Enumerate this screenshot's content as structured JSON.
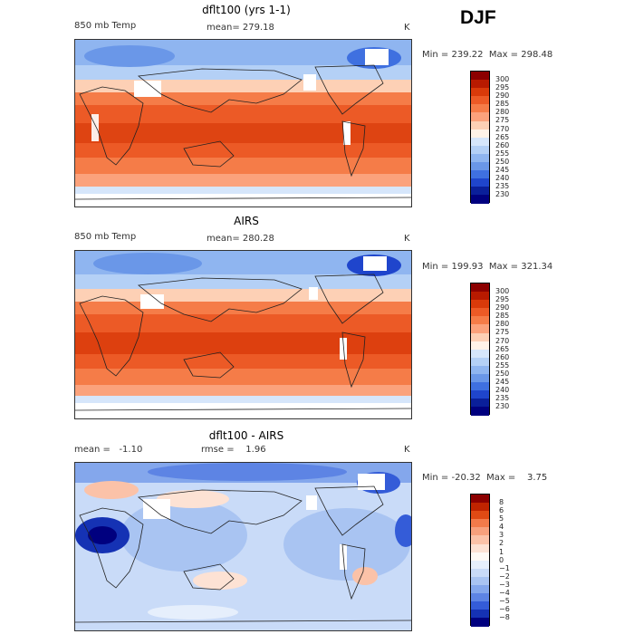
{
  "season": "DJF",
  "panels": [
    {
      "title": "dflt100 (yrs 1-1)",
      "left_label": "850 mb Temp",
      "center_label": "mean= 279.18",
      "unit": "K",
      "range_text": "Min = 239.22  Max = 298.48",
      "ticks": [
        "300",
        "295",
        "290",
        "285",
        "280",
        "275",
        "270",
        "265",
        "260",
        "255",
        "250",
        "245",
        "240",
        "235",
        "230"
      ]
    },
    {
      "title": "AIRS",
      "left_label": "850 mb Temp",
      "center_label": "mean= 280.28",
      "unit": "K",
      "range_text": "Min = 199.93  Max = 321.34",
      "ticks": [
        "300",
        "295",
        "290",
        "285",
        "280",
        "275",
        "270",
        "265",
        "260",
        "255",
        "250",
        "245",
        "240",
        "235",
        "230"
      ]
    },
    {
      "title": "dflt100 - AIRS",
      "left_label": "mean =   -1.10",
      "center_label": "rmse =    1.96",
      "unit": "K",
      "range_text": "Min = -20.32  Max =    3.75",
      "ticks": [
        "8",
        "6",
        "5",
        "4",
        "3",
        "2",
        "1",
        "0",
        "−1",
        "−2",
        "−3",
        "−4",
        "−5",
        "−6",
        "−8"
      ]
    }
  ],
  "colors": {
    "temp_scale": [
      "#8c0000",
      "#b81a00",
      "#d93a0a",
      "#ec5a26",
      "#f57c48",
      "#fba27c",
      "#fdd0b5",
      "#fff3e8",
      "#d6e6fb",
      "#b4d0f6",
      "#8fb5f0",
      "#6a97e8",
      "#3f70e0",
      "#1f45cc",
      "#0a1f9a",
      "#00007f"
    ],
    "diff_scale": [
      "#8c0000",
      "#c02400",
      "#e04a14",
      "#f27a4a",
      "#f7a07c",
      "#fbc2a8",
      "#fde2d4",
      "#fffaf5",
      "#e6effc",
      "#c9dbf8",
      "#a9c4f2",
      "#84a7ec",
      "#5d84e4",
      "#345cd8",
      "#1532b4",
      "#00007f"
    ],
    "land_outline": "#222222",
    "missing": "#ffffff"
  }
}
